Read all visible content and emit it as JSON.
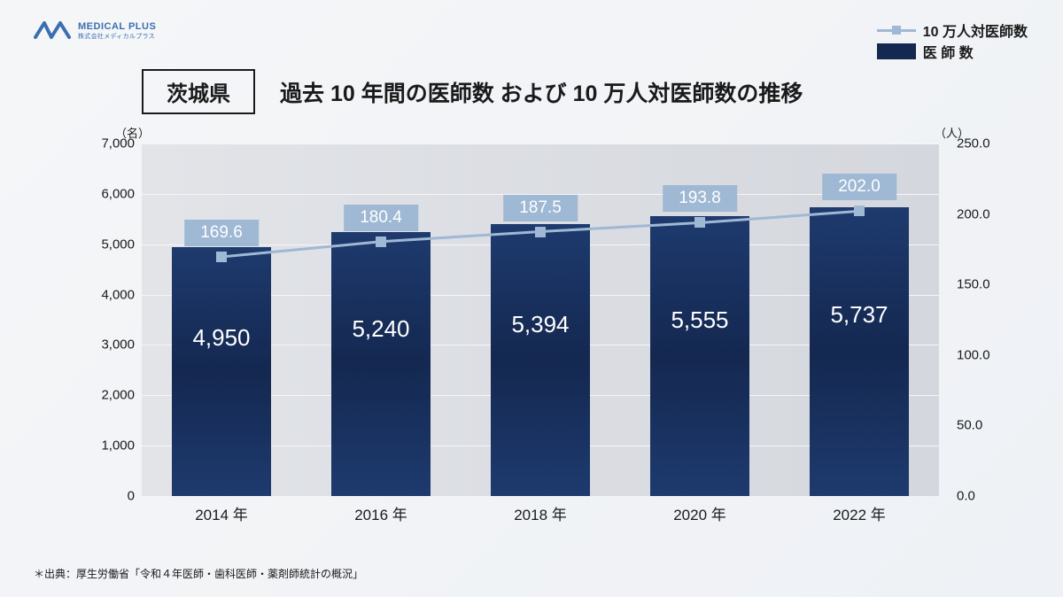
{
  "logo": {
    "brand": "MEDICAL PLUS",
    "sub": "株式会社メディカルプラス",
    "color": "#3b6fb0"
  },
  "legend": {
    "line_label": "10 万人対医師数",
    "bar_label": "医 師 数",
    "line_color": "#9fb8d4",
    "bar_color": "#142850"
  },
  "region": "茨城県",
  "title": "過去 10 年間の医師数 および 10 万人対医師数の推移",
  "chart": {
    "type": "bar+line",
    "categories": [
      "2014 年",
      "2016 年",
      "2018 年",
      "2020 年",
      "2022 年"
    ],
    "bars": {
      "values": [
        4950,
        5240,
        5394,
        5555,
        5737
      ],
      "labels": [
        "4,950",
        "5,240",
        "5,394",
        "5,555",
        "5,737"
      ],
      "color_top": "#1e3a6e",
      "color_mid": "#142850",
      "label_color": "#ffffff",
      "label_fontsize": 26,
      "bar_width_frac": 0.62
    },
    "line": {
      "values": [
        169.6,
        180.4,
        187.5,
        193.8,
        202.0
      ],
      "labels": [
        "169.6",
        "180.4",
        "187.5",
        "193.8",
        "202.0"
      ],
      "color": "#9fb8d4",
      "stroke_width": 3,
      "marker_size": 12,
      "label_bg": "#9fb8d4",
      "label_fg": "#ffffff",
      "label_fontsize": 19
    },
    "y_left": {
      "unit": "（名）",
      "min": 0,
      "max": 7000,
      "step": 1000,
      "ticks": [
        "0",
        "1,000",
        "2,000",
        "3,000",
        "4,000",
        "5,000",
        "6,000",
        "7,000"
      ]
    },
    "y_right": {
      "unit": "（人）",
      "min": 0,
      "max": 250,
      "step": 50,
      "ticks": [
        "0.0",
        "50.0",
        "100.0",
        "150.0",
        "200.0",
        "250.0"
      ]
    },
    "plot_bg": "#e2e4e8",
    "grid_color": "#f5f6f8",
    "tick_fontsize": 15,
    "xtick_fontsize": 17
  },
  "footnote": "＊出典：厚生労働省「令和４年医師・歯科医師・薬剤師統計の概況」"
}
